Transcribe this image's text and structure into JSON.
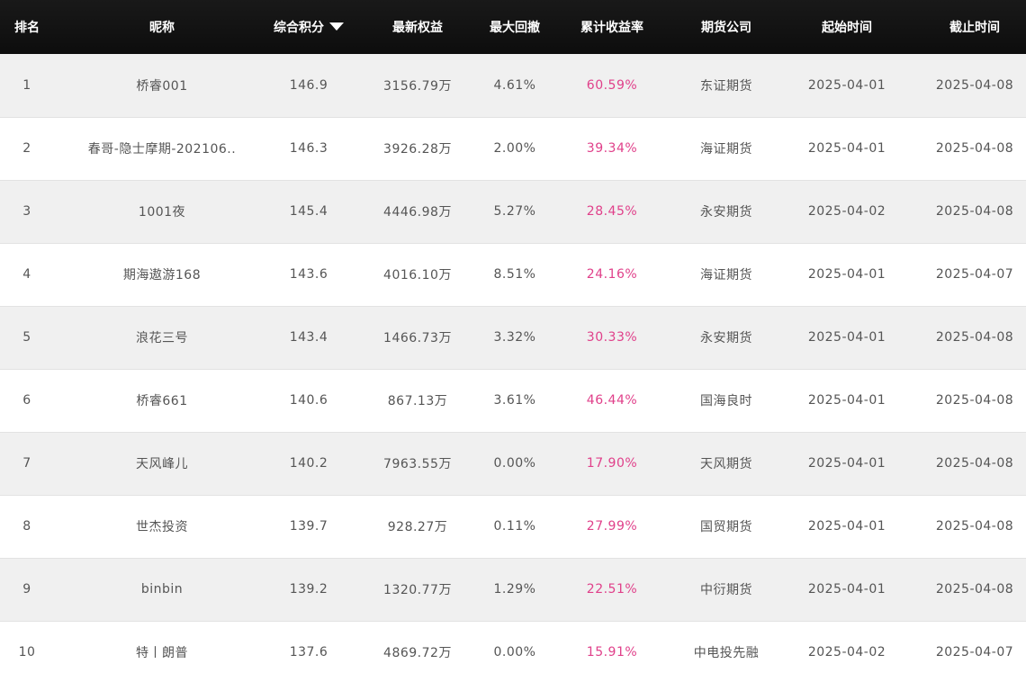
{
  "table": {
    "headers": {
      "rank": "排名",
      "nickname": "昵称",
      "score": "综合积分",
      "equity": "最新权益",
      "max_drawdown": "最大回撤",
      "cumulative_return": "累计收益率",
      "broker": "期货公司",
      "start_date": "起始时间",
      "end_date": "截止时间"
    },
    "sort_icon": "caret-down-icon",
    "return_color": "#e0408a",
    "header_bg": "#111111",
    "rows": [
      {
        "rank": "1",
        "nickname": "桥睿001",
        "score": "146.9",
        "equity": "3156.79万",
        "max_drawdown": "4.61%",
        "cumulative_return": "60.59%",
        "broker": "东证期货",
        "start_date": "2025-04-01",
        "end_date": "2025-04-08"
      },
      {
        "rank": "2",
        "nickname": "春哥-隐士摩期-202106..",
        "score": "146.3",
        "equity": "3926.28万",
        "max_drawdown": "2.00%",
        "cumulative_return": "39.34%",
        "broker": "海证期货",
        "start_date": "2025-04-01",
        "end_date": "2025-04-08"
      },
      {
        "rank": "3",
        "nickname": "1001夜",
        "score": "145.4",
        "equity": "4446.98万",
        "max_drawdown": "5.27%",
        "cumulative_return": "28.45%",
        "broker": "永安期货",
        "start_date": "2025-04-02",
        "end_date": "2025-04-08"
      },
      {
        "rank": "4",
        "nickname": "期海遨游168",
        "score": "143.6",
        "equity": "4016.10万",
        "max_drawdown": "8.51%",
        "cumulative_return": "24.16%",
        "broker": "海证期货",
        "start_date": "2025-04-01",
        "end_date": "2025-04-07"
      },
      {
        "rank": "5",
        "nickname": "浪花三号",
        "score": "143.4",
        "equity": "1466.73万",
        "max_drawdown": "3.32%",
        "cumulative_return": "30.33%",
        "broker": "永安期货",
        "start_date": "2025-04-01",
        "end_date": "2025-04-08"
      },
      {
        "rank": "6",
        "nickname": "桥睿661",
        "score": "140.6",
        "equity": "867.13万",
        "max_drawdown": "3.61%",
        "cumulative_return": "46.44%",
        "broker": "国海良时",
        "start_date": "2025-04-01",
        "end_date": "2025-04-08"
      },
      {
        "rank": "7",
        "nickname": "天风峰儿",
        "score": "140.2",
        "equity": "7963.55万",
        "max_drawdown": "0.00%",
        "cumulative_return": "17.90%",
        "broker": "天风期货",
        "start_date": "2025-04-01",
        "end_date": "2025-04-08"
      },
      {
        "rank": "8",
        "nickname": "世杰投资",
        "score": "139.7",
        "equity": "928.27万",
        "max_drawdown": "0.11%",
        "cumulative_return": "27.99%",
        "broker": "国贸期货",
        "start_date": "2025-04-01",
        "end_date": "2025-04-08"
      },
      {
        "rank": "9",
        "nickname": "binbin",
        "score": "139.2",
        "equity": "1320.77万",
        "max_drawdown": "1.29%",
        "cumulative_return": "22.51%",
        "broker": "中衍期货",
        "start_date": "2025-04-01",
        "end_date": "2025-04-08"
      },
      {
        "rank": "10",
        "nickname": "特丨朗普",
        "score": "137.6",
        "equity": "4869.72万",
        "max_drawdown": "0.00%",
        "cumulative_return": "15.91%",
        "broker": "中电投先融",
        "start_date": "2025-04-02",
        "end_date": "2025-04-07"
      }
    ]
  }
}
